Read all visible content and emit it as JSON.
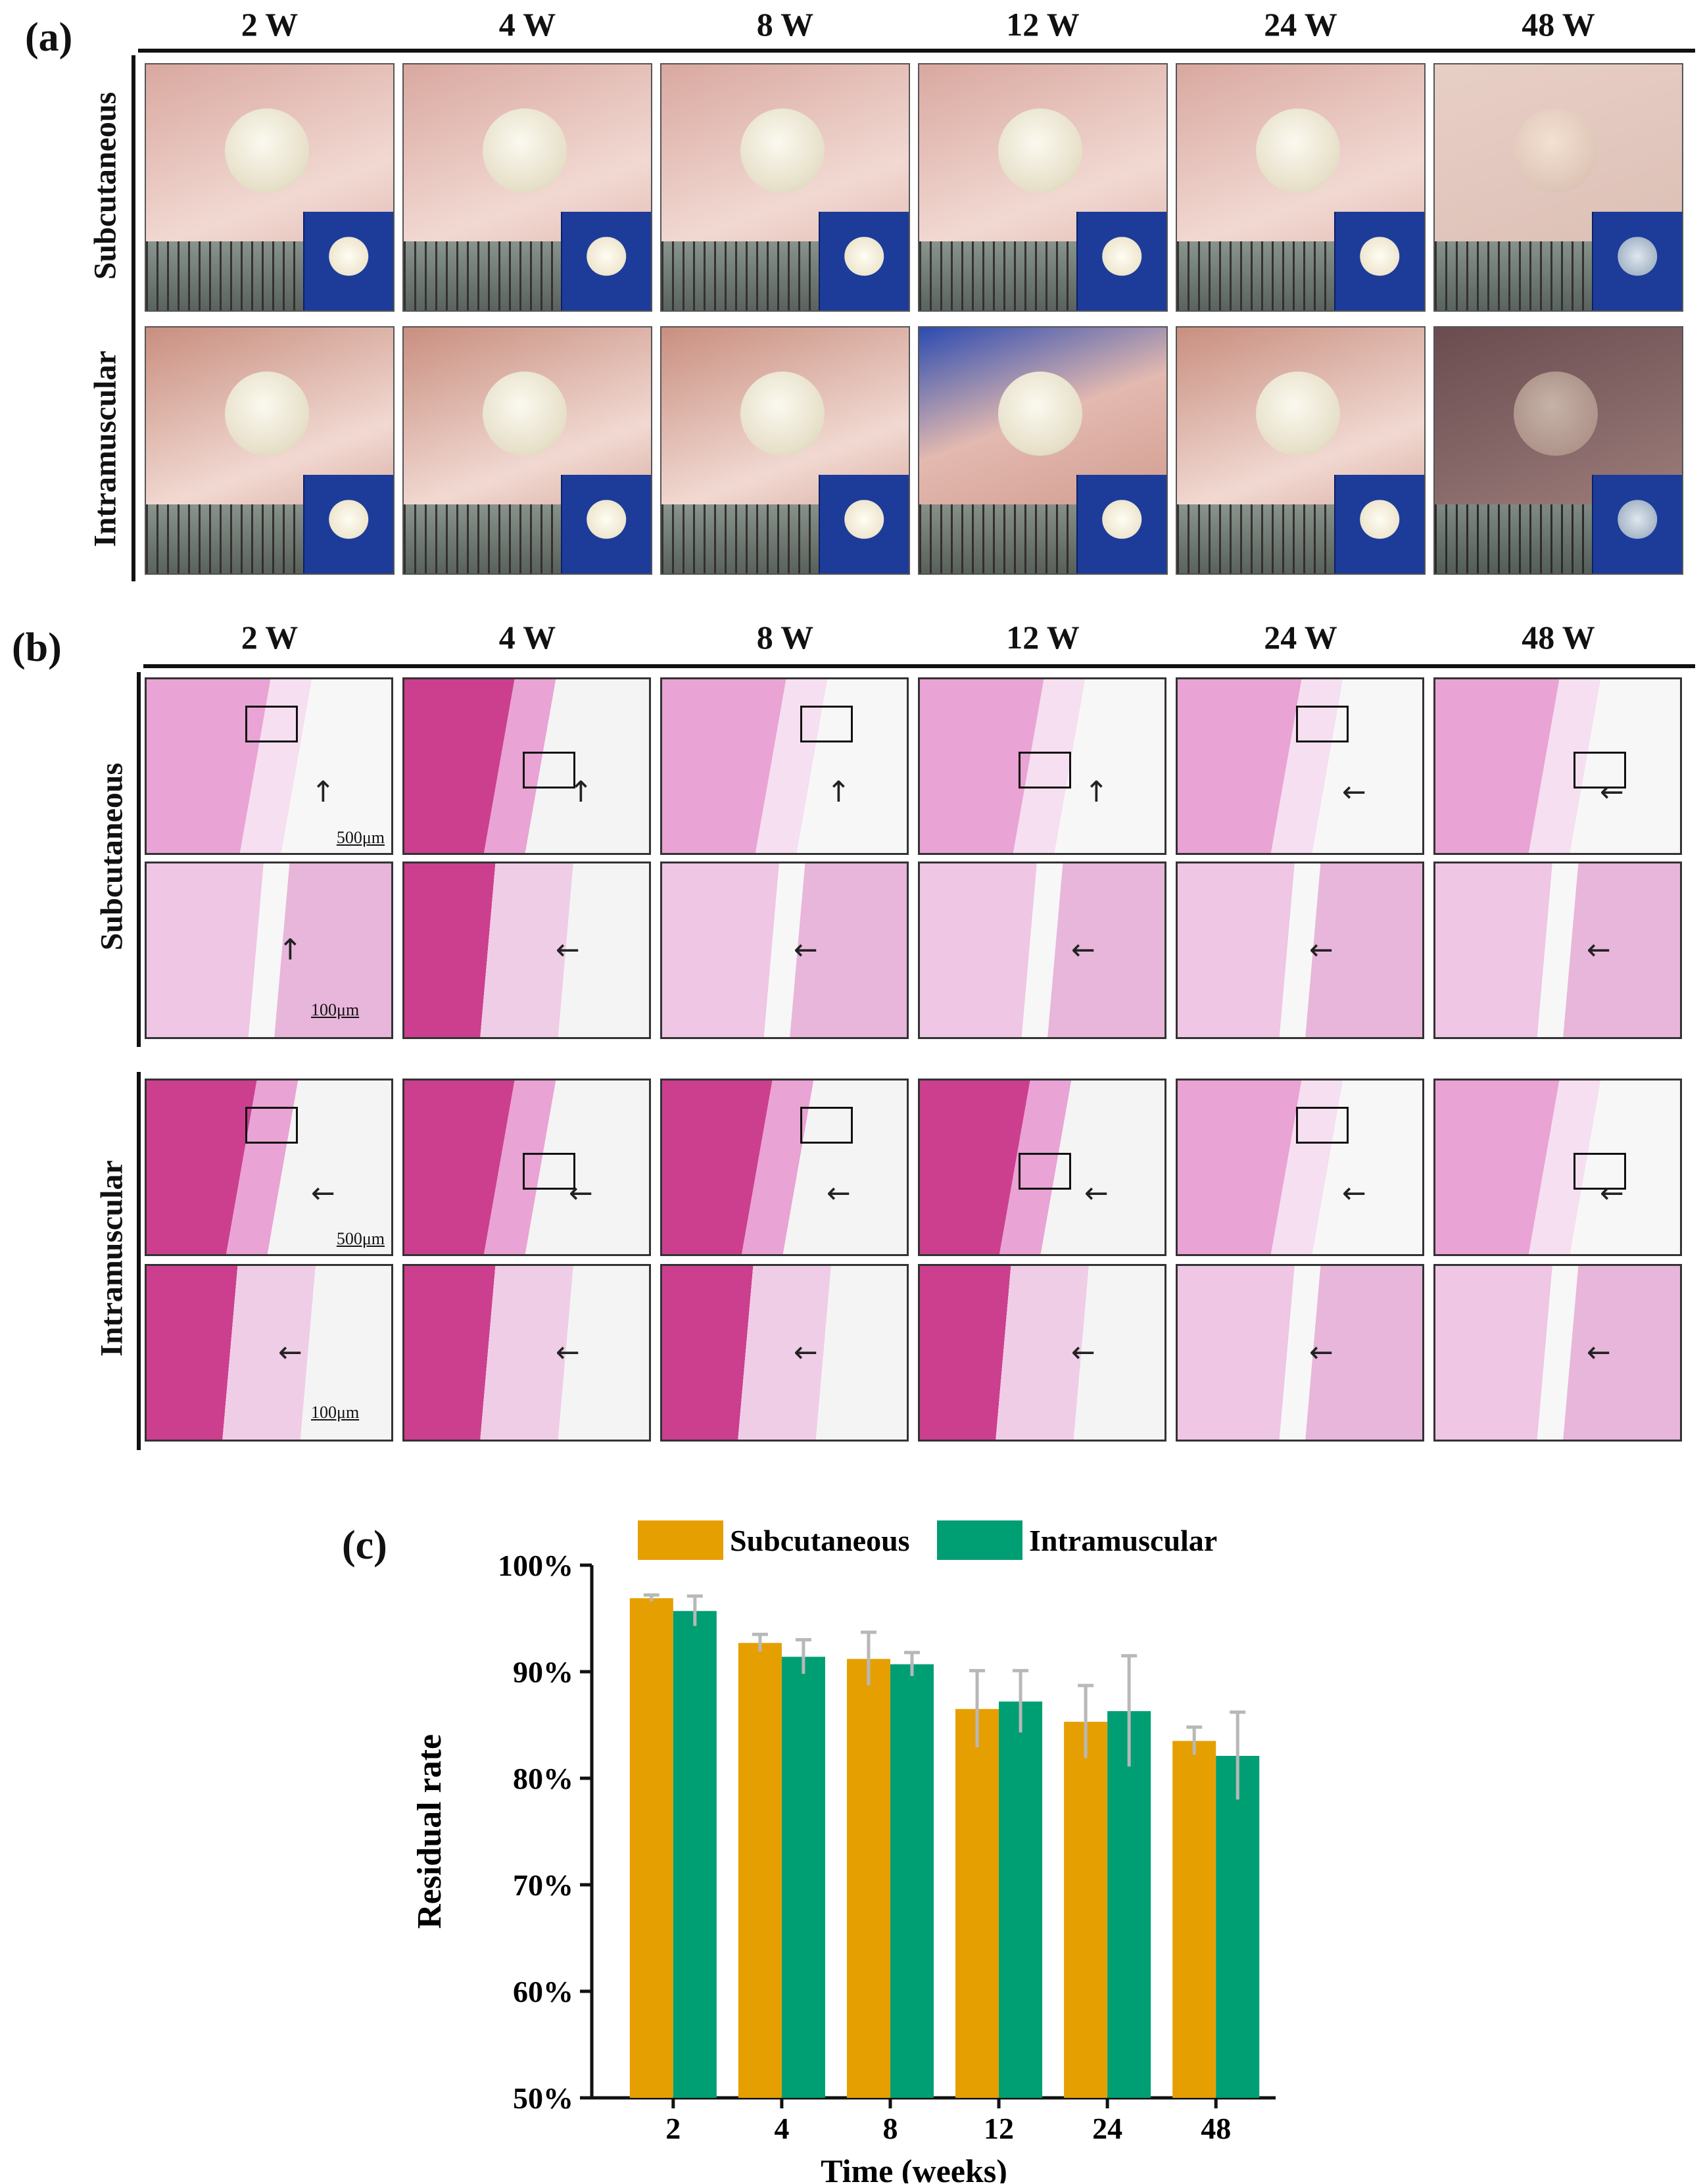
{
  "panels": {
    "a": {
      "label": "(a)",
      "columns": [
        "2 W",
        "4 W",
        "8 W",
        "12 W",
        "24 W",
        "48 W"
      ],
      "rows": [
        "Subcutaneous",
        "Intramuscular"
      ]
    },
    "b": {
      "label": "(b)",
      "columns": [
        "2 W",
        "4 W",
        "8 W",
        "12 W",
        "24 W",
        "48 W"
      ],
      "rows": [
        "Subcutaneous",
        "Intramuscular"
      ],
      "scale_bars": {
        "low_mag": "500μm",
        "high_mag": "100μm"
      }
    },
    "c": {
      "label": "(c)"
    }
  },
  "colors": {
    "subcutaneous": "#E69F00",
    "intramuscular": "#009E73",
    "error_bar": "#b8b8b8",
    "tissue_sub": "#d9a8a0",
    "tissue_intra": "#c98f80",
    "he_stain": "#e9a3d4",
    "muscle": "#cc3f8f"
  },
  "chart_data": {
    "type": "bar",
    "categories": [
      "2",
      "4",
      "8",
      "12",
      "24",
      "48"
    ],
    "series": [
      {
        "name": "Subcutaneous",
        "values": [
          96.9,
          92.7,
          91.2,
          86.5,
          85.3,
          83.5
        ],
        "errors": [
          0.3,
          0.8,
          2.5,
          3.6,
          3.4,
          1.3
        ]
      },
      {
        "name": "Intramuscular",
        "values": [
          95.7,
          91.4,
          90.7,
          87.2,
          86.3,
          82.1
        ],
        "errors": [
          1.4,
          1.6,
          1.1,
          2.9,
          5.2,
          4.1
        ]
      }
    ],
    "xlabel": "Time (weeks)",
    "ylabel": "Residual rate",
    "ylim": [
      50,
      100
    ],
    "yticks": [
      "50%",
      "60%",
      "70%",
      "80%",
      "90%",
      "100%"
    ],
    "legend_position": "top",
    "grid": false
  }
}
